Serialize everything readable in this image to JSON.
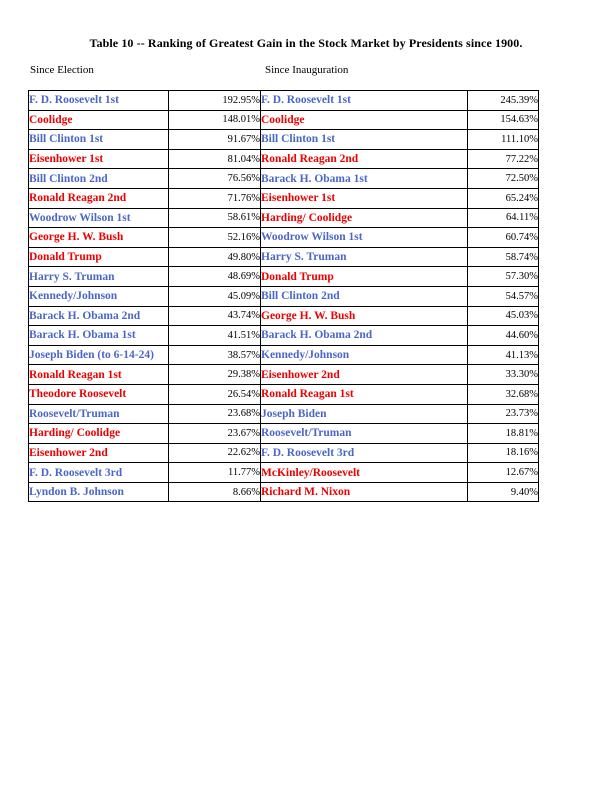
{
  "page": {
    "title": "Table 10 -- Ranking of Greatest Gain in the Stock Market by Presidents since 1900.",
    "left_header": "Since Election",
    "right_header": "Since Inauguration"
  },
  "colors": {
    "blue": "#4a67c8",
    "red": "#ee0000",
    "value_text": "#000000",
    "border": "#000000"
  },
  "table": {
    "since_election": [
      {
        "name": "F. D. Roosevelt 1st",
        "gain": "192.95%",
        "color": "blue"
      },
      {
        "name": "Coolidge",
        "gain": "148.01%",
        "color": "red"
      },
      {
        "name": "Bill Clinton 1st",
        "gain": "91.67%",
        "color": "blue"
      },
      {
        "name": "Eisenhower 1st",
        "gain": "81.04%",
        "color": "red"
      },
      {
        "name": "Bill Clinton 2nd",
        "gain": "76.56%",
        "color": "blue"
      },
      {
        "name": "Ronald Reagan 2nd",
        "gain": "71.76%",
        "color": "red"
      },
      {
        "name": "Woodrow Wilson 1st",
        "gain": "58.61%",
        "color": "blue"
      },
      {
        "name": "George H. W. Bush",
        "gain": "52.16%",
        "color": "red"
      },
      {
        "name": "Donald Trump",
        "gain": "49.80%",
        "color": "red"
      },
      {
        "name": "Harry S. Truman",
        "gain": "48.69%",
        "color": "blue"
      },
      {
        "name": "Kennedy/Johnson",
        "gain": "45.09%",
        "color": "blue"
      },
      {
        "name": "Barack H. Obama 2nd",
        "gain": "43.74%",
        "color": "blue"
      },
      {
        "name": "Barack H. Obama 1st",
        "gain": "41.51%",
        "color": "blue"
      },
      {
        "name": "Joseph Biden (to 6-14-24)",
        "gain": "38.57%",
        "color": "blue"
      },
      {
        "name": "Ronald Reagan 1st",
        "gain": "29.38%",
        "color": "red"
      },
      {
        "name": "Theodore Roosevelt",
        "gain": "26.54%",
        "color": "red"
      },
      {
        "name": "Roosevelt/Truman",
        "gain": "23.68%",
        "color": "blue"
      },
      {
        "name": "Harding/ Coolidge",
        "gain": "23.67%",
        "color": "red"
      },
      {
        "name": "Eisenhower 2nd",
        "gain": "22.62%",
        "color": "red"
      },
      {
        "name": "F. D. Roosevelt 3rd",
        "gain": "11.77%",
        "color": "blue"
      },
      {
        "name": "Lyndon B. Johnson",
        "gain": "8.66%",
        "color": "blue"
      }
    ],
    "since_inauguration": [
      {
        "name": "F. D. Roosevelt 1st",
        "gain": "245.39%",
        "color": "blue"
      },
      {
        "name": "Coolidge",
        "gain": "154.63%",
        "color": "red"
      },
      {
        "name": "Bill Clinton 1st",
        "gain": "111.10%",
        "color": "blue"
      },
      {
        "name": "Ronald Reagan 2nd",
        "gain": "77.22%",
        "color": "red"
      },
      {
        "name": "Barack H. Obama 1st",
        "gain": "72.50%",
        "color": "blue"
      },
      {
        "name": "Eisenhower 1st",
        "gain": "65.24%",
        "color": "red"
      },
      {
        "name": "Harding/ Coolidge",
        "gain": "64.11%",
        "color": "red"
      },
      {
        "name": "Woodrow Wilson 1st",
        "gain": "60.74%",
        "color": "blue"
      },
      {
        "name": "Harry S. Truman",
        "gain": "58.74%",
        "color": "blue"
      },
      {
        "name": "Donald Trump",
        "gain": "57.30%",
        "color": "red"
      },
      {
        "name": "Bill Clinton 2nd",
        "gain": "54.57%",
        "color": "blue"
      },
      {
        "name": "George H. W. Bush",
        "gain": "45.03%",
        "color": "red"
      },
      {
        "name": "Barack H. Obama 2nd",
        "gain": "44.60%",
        "color": "blue"
      },
      {
        "name": "Kennedy/Johnson",
        "gain": "41.13%",
        "color": "blue"
      },
      {
        "name": "Eisenhower 2nd",
        "gain": "33.30%",
        "color": "red"
      },
      {
        "name": "Ronald Reagan 1st",
        "gain": "32.68%",
        "color": "red"
      },
      {
        "name": "Joseph Biden",
        "gain": "23.73%",
        "color": "blue"
      },
      {
        "name": "Roosevelt/Truman",
        "gain": "18.81%",
        "color": "blue"
      },
      {
        "name": "F. D. Roosevelt 3rd",
        "gain": "18.16%",
        "color": "blue"
      },
      {
        "name": "McKinley/Roosevelt",
        "gain": "12.67%",
        "color": "red"
      },
      {
        "name": "Richard M. Nixon",
        "gain": "9.40%",
        "color": "red"
      }
    ]
  }
}
